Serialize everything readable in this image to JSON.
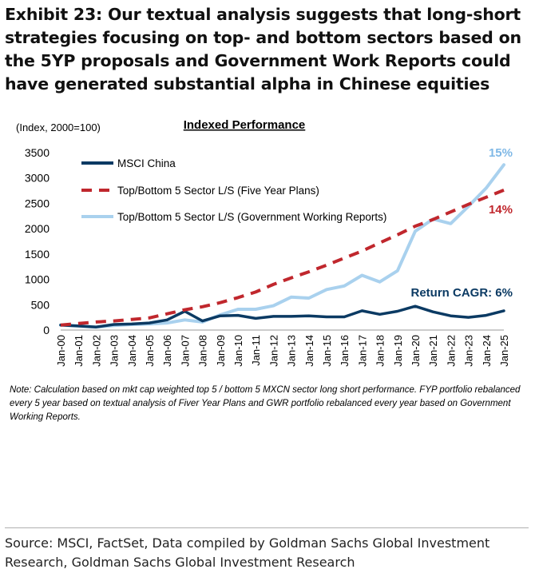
{
  "header": {
    "title": "Exhibit 23: Our textual analysis suggests that long-short strategies focusing on top- and bottom sectors based on the 5YP proposals and Government Work Reports could have generated substantial alpha in Chinese equities"
  },
  "chart_data": {
    "type": "line",
    "title": "Indexed Performance",
    "ylabel": "(Index, 2000=100)",
    "xlabel": "",
    "ylim": [
      0,
      3500
    ],
    "yticks": [
      0,
      500,
      1000,
      1500,
      2000,
      2500,
      3000,
      3500
    ],
    "categories": [
      "Jan-00",
      "Jan-01",
      "Jan-02",
      "Jan-03",
      "Jan-04",
      "Jan-05",
      "Jan-06",
      "Jan-07",
      "Jan-08",
      "Jan-09",
      "Jan-10",
      "Jan-11",
      "Jan-12",
      "Jan-13",
      "Jan-14",
      "Jan-15",
      "Jan-16",
      "Jan-17",
      "Jan-18",
      "Jan-19",
      "Jan-20",
      "Jan-21",
      "Jan-22",
      "Jan-23",
      "Jan-24",
      "Jan-25"
    ],
    "series": [
      {
        "name": "MSCI China",
        "color": "#0b3a63",
        "style": "solid",
        "values": [
          100,
          80,
          60,
          110,
          120,
          140,
          200,
          370,
          180,
          280,
          290,
          230,
          270,
          270,
          280,
          260,
          260,
          380,
          310,
          370,
          470,
          360,
          280,
          250,
          290,
          380
        ]
      },
      {
        "name": "Top/Bottom 5 Sector L/S (Five Year Plans)",
        "color": "#c0272d",
        "style": "dashed",
        "values": [
          100,
          130,
          160,
          180,
          210,
          240,
          320,
          400,
          460,
          540,
          640,
          750,
          900,
          1030,
          1150,
          1280,
          1420,
          1560,
          1720,
          1880,
          2050,
          2180,
          2330,
          2480,
          2620,
          2760
        ]
      },
      {
        "name": "Top/Bottom 5 Sector L/S (Government Working Reports)",
        "color": "#a9d1ee",
        "style": "solid",
        "values": [
          100,
          80,
          60,
          90,
          110,
          120,
          140,
          200,
          160,
          300,
          410,
          410,
          480,
          650,
          630,
          800,
          870,
          1080,
          950,
          1170,
          1950,
          2190,
          2100,
          2440,
          2800,
          3260
        ]
      }
    ],
    "annotations": [
      {
        "text": "15%",
        "series": 2,
        "color": "#7fb8e6"
      },
      {
        "text": "14%",
        "series": 1,
        "color": "#c0272d"
      },
      {
        "text": "Return CAGR: 6%",
        "series": 0,
        "color": "#0b3a63"
      }
    ]
  },
  "note": "Note: Calculation based on mkt cap weighted top 5 / bottom 5 MXCN sector long short performance. FYP portfolio rebalanced every 5 year based on textual analysis of Fiver Year Plans and GWR portfolio rebalanced every year based on Government Working Reports.",
  "source": "Source: MSCI, FactSet, Data compiled by Goldman Sachs Global Investment Research, Goldman Sachs Global Investment Research"
}
